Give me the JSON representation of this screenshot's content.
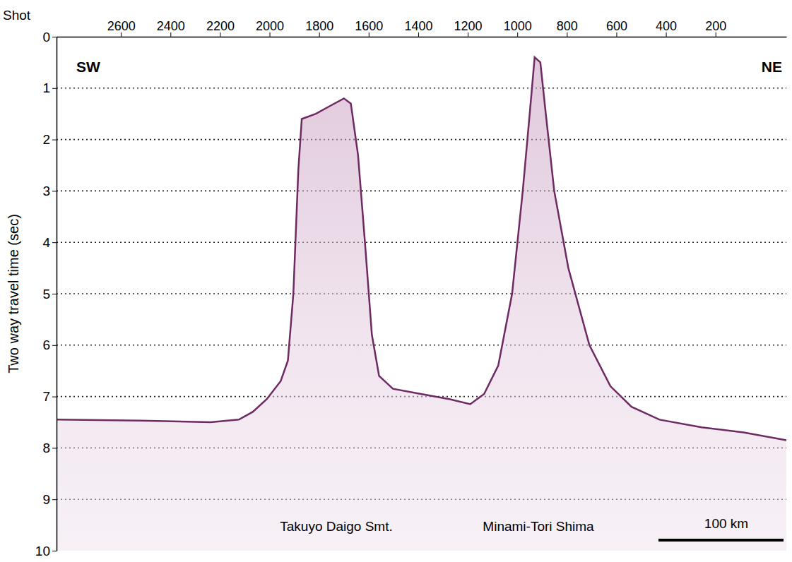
{
  "chart_data": {
    "type": "line",
    "x_label": "Shot",
    "y_label": "Two way travel time (sec)",
    "annotations": [
      "SW",
      "NE",
      "Takuyo Daigo Smt.",
      "Minami-Tori Shima",
      "100 km"
    ],
    "x": [
      2860,
      2521,
      2238,
      2124,
      2068,
      2011,
      1955,
      1926,
      1904,
      1884,
      1870,
      1813,
      1757,
      1700,
      1672,
      1643,
      1615,
      1587,
      1558,
      1502,
      1389,
      1275,
      1190,
      1134,
      1077,
      1021,
      978,
      950,
      930,
      907,
      885,
      851,
      794,
      709,
      624,
      539,
      426,
      256,
      86,
      -86
    ],
    "values": [
      7.45,
      7.47,
      7.5,
      7.45,
      7.3,
      7.05,
      6.7,
      6.3,
      5.0,
      2.6,
      1.6,
      1.5,
      1.35,
      1.2,
      1.3,
      2.3,
      4.0,
      5.8,
      6.6,
      6.85,
      6.95,
      7.05,
      7.15,
      6.95,
      6.4,
      5.0,
      3.0,
      1.5,
      0.4,
      0.5,
      1.5,
      3.0,
      4.5,
      6.0,
      6.8,
      7.2,
      7.45,
      7.6,
      7.7,
      7.85
    ],
    "color": "#6e2a63",
    "xlim": [
      2860,
      -86
    ],
    "xticks": [
      2600,
      2400,
      2200,
      2000,
      1800,
      1600,
      1400,
      1200,
      1000,
      800,
      600,
      400,
      200
    ],
    "ylim": [
      0,
      10
    ],
    "yticks": [
      0,
      1,
      2,
      3,
      4,
      5,
      6,
      7,
      8,
      9,
      10
    ],
    "grid": true
  }
}
